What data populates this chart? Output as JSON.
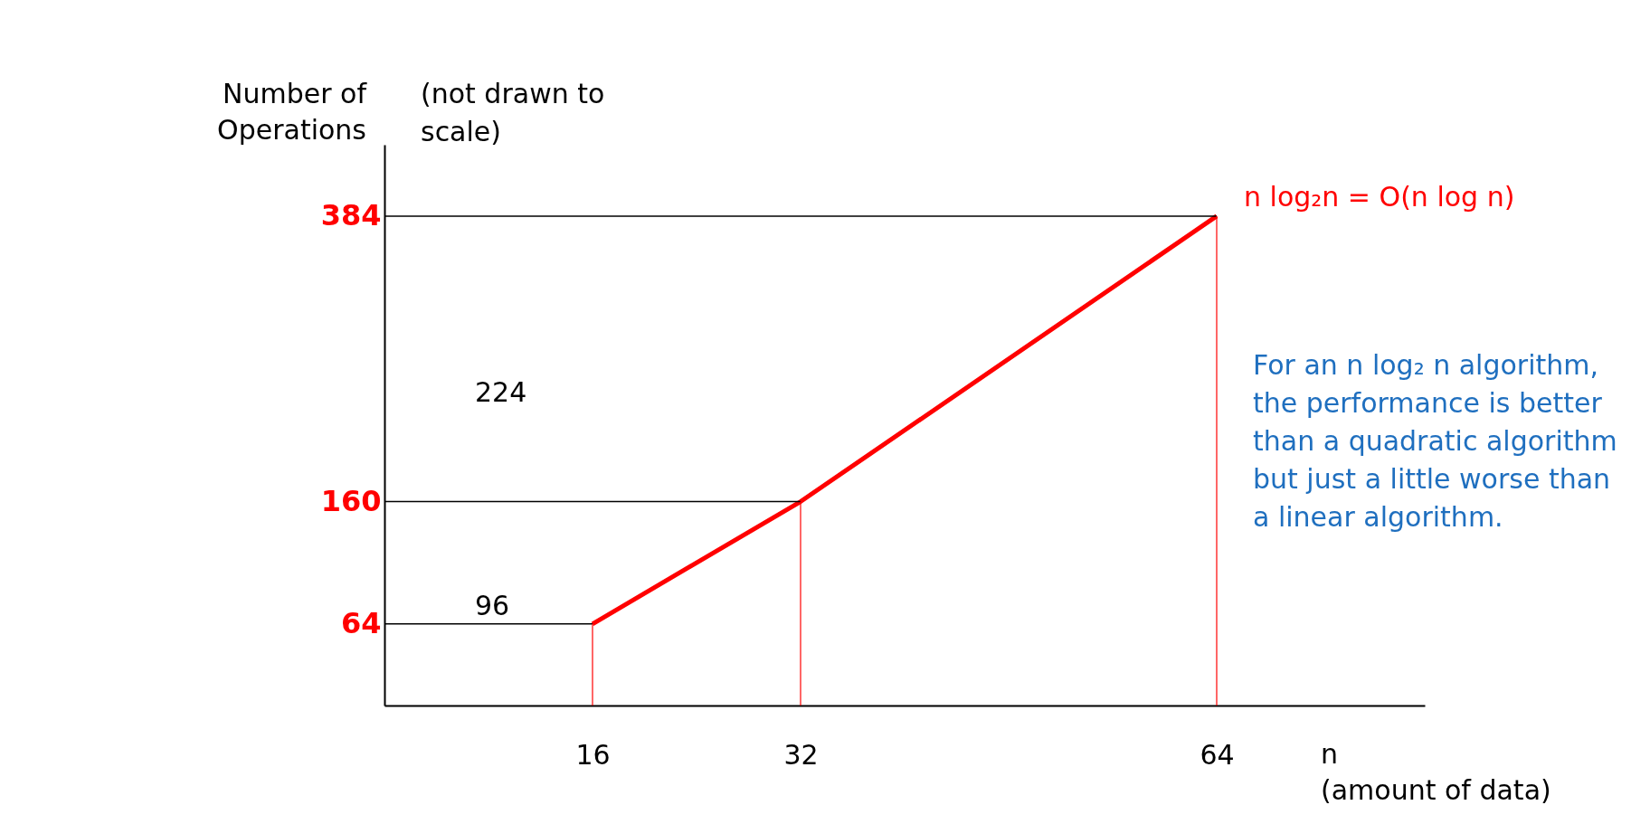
{
  "chart_data": {
    "type": "line",
    "ylabel": "Number of Operations",
    "xlabel": "n (amount of data)",
    "x": [
      16,
      32,
      64
    ],
    "series": [
      {
        "name": "n log₂n = O(n log n)",
        "color": "#ff0000",
        "values": [
          64,
          160,
          384
        ]
      }
    ],
    "xlim": [
      0,
      80
    ],
    "ylim": [
      0,
      440
    ],
    "xticks": [
      16,
      32,
      64
    ],
    "yticks": [
      64,
      160,
      384
    ],
    "grid": false,
    "marker": "none",
    "line_style": "solid",
    "ref_lines": [
      {
        "axis": "y",
        "value": 64,
        "color": "#000000"
      },
      {
        "axis": "y",
        "value": 160,
        "color": "#000000"
      },
      {
        "axis": "y",
        "value": 384,
        "color": "#000000"
      },
      {
        "axis": "x",
        "value": 16,
        "color": "#ff0000"
      },
      {
        "axis": "x",
        "value": 32,
        "color": "#ff0000"
      },
      {
        "axis": "x",
        "value": 64,
        "color": "#ff0000"
      }
    ],
    "annotations": [
      "224",
      "96",
      "(not drawn to scale)",
      "For an n log₂ n algorithm, the performance is better than a quadratic algorithm but just a little worse than a linear algorithm."
    ]
  }
}
